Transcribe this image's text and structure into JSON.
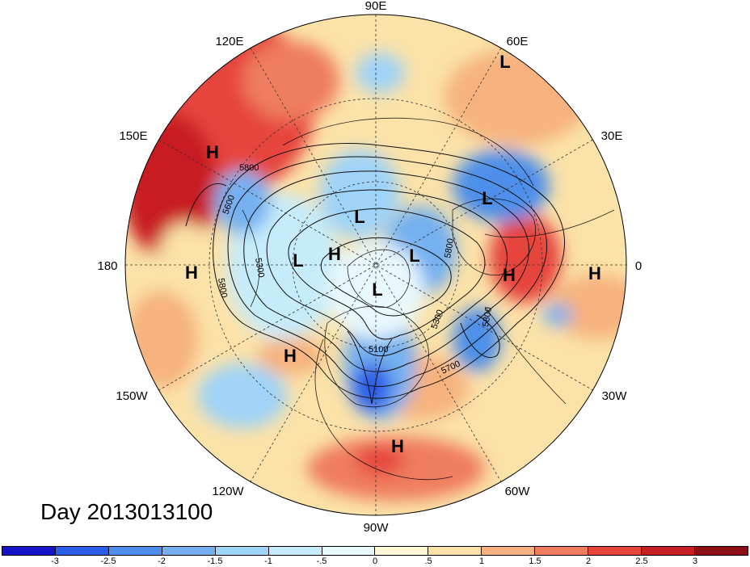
{
  "day_label": "Day 2013013100",
  "longitude_labels": [
    "90E",
    "60E",
    "30E",
    "0",
    "30W",
    "60W",
    "90W",
    "120W",
    "150W",
    "180",
    "150E",
    "120E"
  ],
  "contour_labels": [
    "5800",
    "5600",
    "5800",
    "5300",
    "5800",
    "5300",
    "5800",
    "5700",
    "5100"
  ],
  "pressure_systems": [
    {
      "type": "H",
      "region": "northeast Pacific"
    },
    {
      "type": "H",
      "region": "central Pacific"
    },
    {
      "type": "L",
      "region": "Bering Sea"
    },
    {
      "type": "H",
      "region": "Alaska"
    },
    {
      "type": "L",
      "region": "Siberia"
    },
    {
      "type": "L",
      "region": "Arctic"
    },
    {
      "type": "L",
      "region": "Hudson Bay"
    },
    {
      "type": "H",
      "region": "western Pacific"
    },
    {
      "type": "H",
      "region": "Caribbean"
    },
    {
      "type": "L",
      "region": "Scandinavia"
    },
    {
      "type": "L",
      "region": "Urals"
    },
    {
      "type": "H",
      "region": "North Atlantic"
    },
    {
      "type": "H",
      "region": "Africa"
    }
  ],
  "colorbar": {
    "ticks": [
      "-3",
      "-2.5",
      "-2",
      "-1.5",
      "-1",
      "-.5",
      "0",
      ".5",
      "1",
      "1.5",
      "2",
      "2.5",
      "3"
    ],
    "colors": [
      "#1515c8",
      "#2a5ee8",
      "#4d8fea",
      "#74b0f0",
      "#9fd3f8",
      "#c6ecfb",
      "#e8f8fd",
      "#fdf7d6",
      "#fbe2a8",
      "#f6b27e",
      "#ef7d5e",
      "#e6453c",
      "#c81f24",
      "#8f0f16"
    ]
  },
  "colors": {
    "positive": "#e6453c",
    "negative": "#2a5ee8",
    "background": "#ffffff"
  }
}
